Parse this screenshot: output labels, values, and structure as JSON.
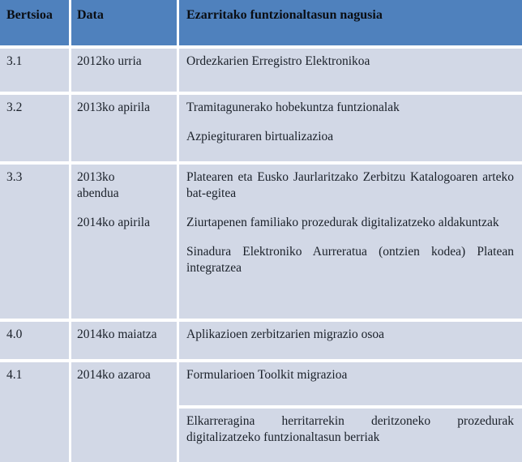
{
  "table": {
    "columns": [
      "Bertsioa",
      "Data",
      "Ezarritako funtzionaltasun nagusia"
    ],
    "rows": [
      {
        "version": "3.1",
        "dates": [
          "2012ko urria"
        ],
        "features": [
          "Ordezkarien Erregistro Elektronikoa"
        ]
      },
      {
        "version": "3.2",
        "dates": [
          "2013ko apirila"
        ],
        "features": [
          "Tramitagunerako hobekuntza funtzionalak",
          "Azpiegituraren birtualizazioa"
        ]
      },
      {
        "version": "3.3",
        "dates": [
          "2013ko\nabendua",
          "2014ko apirila"
        ],
        "features": [
          "Platearen eta Eusko Jaurlaritzako Zerbitzu Katalogoaren arteko bat-egitea",
          "Ziurtapenen familiako prozedurak digitalizatzeko aldakuntzak",
          "Sinadura Elektroniko Aurreratua (ontzien kodea) Platean integratzea"
        ]
      },
      {
        "version": "4.0",
        "dates": [
          "2014ko maiatza"
        ],
        "features": [
          "Aplikazioen zerbitzarien migrazio osoa"
        ]
      },
      {
        "version": "4.1",
        "dates": [
          "2014ko azaroa"
        ],
        "features": [
          "Formularioen Toolkit migrazioa"
        ],
        "features_extra": [
          "Elkarreragina herritarrekin deritzoneko prozedurak digitalizatzeko funtzionaltasun berriak"
        ]
      }
    ],
    "colors": {
      "header_bg": "#4f81bd",
      "cell_bg": "#d2d8e6",
      "grid_lines": "#ffffff",
      "header_text": "#0a0d12",
      "body_text": "#1a2029"
    }
  }
}
